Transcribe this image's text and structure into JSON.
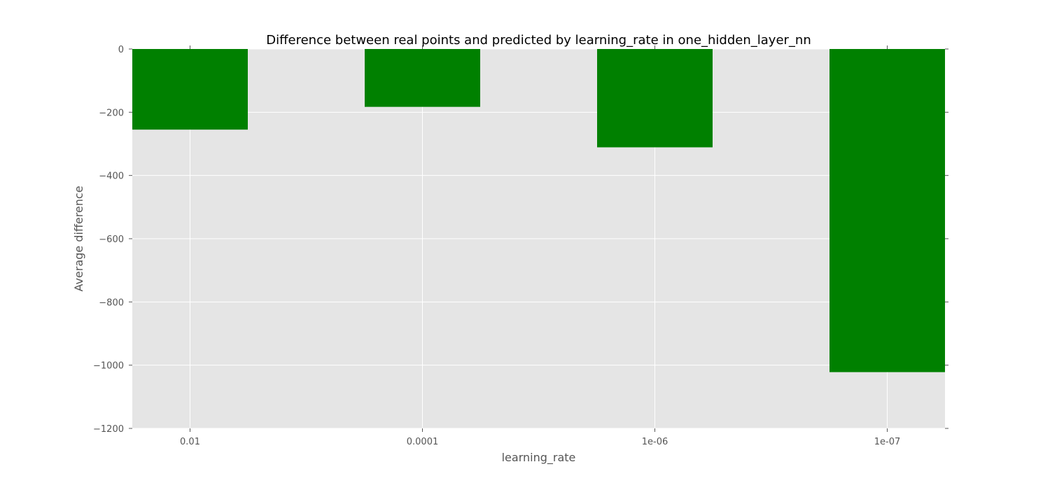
{
  "chart_data": {
    "type": "bar",
    "title": "Difference between real points and predicted by learning_rate in one_hidden_layer_nn",
    "xlabel": "learning_rate",
    "ylabel": "Average difference",
    "categories": [
      "0.01",
      "0.0001",
      "1e-06",
      "1e-07"
    ],
    "values": [
      -255,
      -183,
      -311,
      -1022
    ],
    "ylim": [
      -1200,
      0
    ],
    "yticks": [
      0,
      -200,
      -400,
      -600,
      -800,
      -1000,
      -1200
    ],
    "ytick_labels": [
      "0",
      "−200",
      "−400",
      "−600",
      "−800",
      "−1000",
      "−1200"
    ],
    "grid": true,
    "bar_color": "#008000",
    "background_color": "#e5e5e5"
  }
}
